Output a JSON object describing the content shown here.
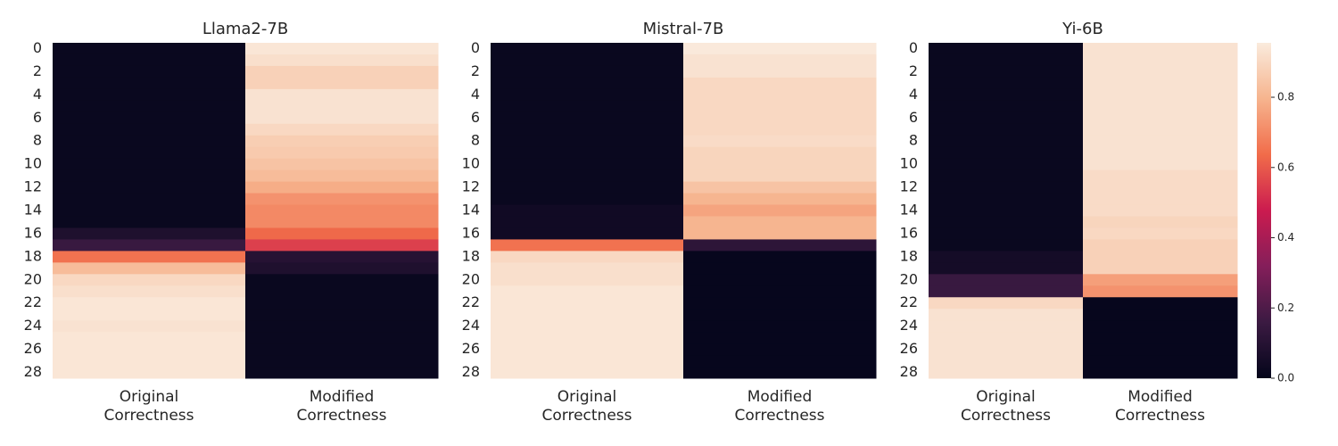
{
  "chart_data": [
    {
      "type": "heatmap",
      "title": "Llama2-7B",
      "x_categories": [
        "Original Correctness",
        "Modified Correctness"
      ],
      "y_categories": [
        0,
        null,
        2,
        null,
        4,
        null,
        6,
        null,
        8,
        null,
        10,
        null,
        12,
        null,
        14,
        null,
        16,
        null,
        18,
        null,
        20,
        null,
        22,
        null,
        24,
        null,
        26,
        null,
        28
      ],
      "values": [
        [
          0.02,
          0.02,
          0.02,
          0.02,
          0.02,
          0.02,
          0.02,
          0.02,
          0.02,
          0.02,
          0.02,
          0.02,
          0.02,
          0.02,
          0.02,
          0.02,
          0.08,
          0.15,
          0.65,
          0.82,
          0.9,
          0.92,
          0.94,
          0.94,
          0.93,
          0.94,
          0.94,
          0.94,
          0.94
        ],
        [
          0.94,
          0.92,
          0.88,
          0.88,
          0.93,
          0.93,
          0.93,
          0.9,
          0.87,
          0.86,
          0.84,
          0.82,
          0.78,
          0.72,
          0.7,
          0.7,
          0.63,
          0.55,
          0.1,
          0.08,
          0.02,
          0.02,
          0.02,
          0.02,
          0.02,
          0.02,
          0.02,
          0.02,
          0.02
        ]
      ]
    },
    {
      "type": "heatmap",
      "title": "Mistral-7B",
      "x_categories": [
        "Original Correctness",
        "Modified Correctness"
      ],
      "y_categories": [
        0,
        null,
        2,
        null,
        4,
        null,
        6,
        null,
        8,
        null,
        10,
        null,
        12,
        null,
        14,
        null,
        16,
        null,
        18,
        null,
        20,
        null,
        22,
        null,
        24,
        null,
        26,
        null,
        28
      ],
      "values": [
        [
          0.02,
          0.02,
          0.02,
          0.02,
          0.02,
          0.02,
          0.02,
          0.02,
          0.02,
          0.02,
          0.02,
          0.02,
          0.02,
          0.02,
          0.04,
          0.04,
          0.04,
          0.65,
          0.9,
          0.92,
          0.92,
          0.94,
          0.94,
          0.94,
          0.94,
          0.94,
          0.94,
          0.94,
          0.94
        ],
        [
          0.95,
          0.93,
          0.93,
          0.9,
          0.9,
          0.9,
          0.9,
          0.9,
          0.91,
          0.89,
          0.89,
          0.89,
          0.84,
          0.8,
          0.76,
          0.8,
          0.8,
          0.12,
          0.01,
          0.01,
          0.01,
          0.01,
          0.01,
          0.01,
          0.01,
          0.01,
          0.01,
          0.01,
          0.01
        ]
      ]
    },
    {
      "type": "heatmap",
      "title": "Yi-6B",
      "x_categories": [
        "Original Correctness",
        "Modified Correctness"
      ],
      "y_categories": [
        0,
        null,
        2,
        null,
        4,
        null,
        6,
        null,
        8,
        null,
        10,
        null,
        12,
        null,
        14,
        null,
        16,
        null,
        18,
        null,
        20,
        null,
        22,
        null,
        24,
        null,
        26,
        null,
        28
      ],
      "values": [
        [
          0.02,
          0.02,
          0.02,
          0.02,
          0.02,
          0.02,
          0.02,
          0.02,
          0.02,
          0.02,
          0.02,
          0.02,
          0.02,
          0.02,
          0.02,
          0.02,
          0.02,
          0.02,
          0.05,
          0.05,
          0.15,
          0.15,
          0.9,
          0.93,
          0.93,
          0.93,
          0.93,
          0.93,
          0.93
        ],
        [
          0.93,
          0.93,
          0.93,
          0.93,
          0.93,
          0.93,
          0.93,
          0.93,
          0.93,
          0.93,
          0.93,
          0.91,
          0.91,
          0.91,
          0.91,
          0.89,
          0.9,
          0.88,
          0.88,
          0.88,
          0.75,
          0.72,
          0.01,
          0.01,
          0.01,
          0.01,
          0.01,
          0.01,
          0.01
        ]
      ],
      "colorbar": {
        "lim": [
          0,
          0.955
        ],
        "ticks": [
          {
            "value": 0,
            "label": "0.0"
          },
          0.2,
          0.4,
          0.6,
          0.8
        ],
        "colormap": [
          "#03051a",
          "#3b1a42",
          "#841e5a",
          "#cb1b4f",
          "#f16c4a",
          "#f6b48e",
          "#faebdd"
        ]
      }
    }
  ]
}
